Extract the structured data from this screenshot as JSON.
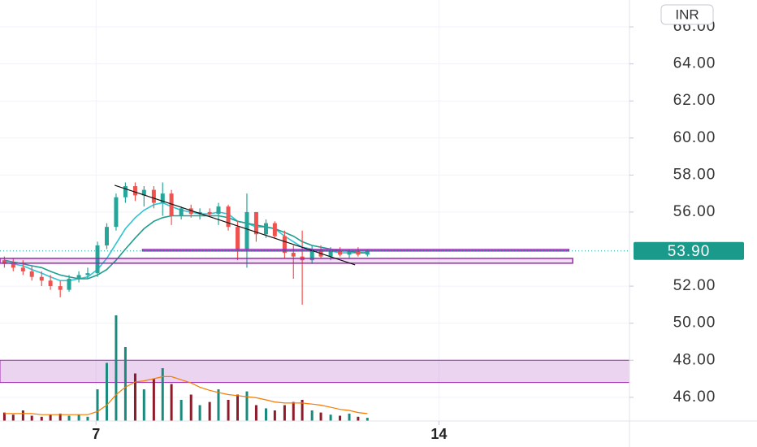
{
  "chart_data": {
    "type": "candlestick",
    "currency": "INR",
    "x": [
      5.13,
      5.31,
      5.51,
      5.69,
      5.89,
      6.07,
      6.27,
      6.45,
      6.65,
      6.83,
      7.03,
      7.22,
      7.41,
      7.6,
      7.8,
      7.98,
      8.18,
      8.36,
      8.54,
      8.74,
      8.94,
      9.12,
      9.32,
      9.5,
      9.7,
      9.89,
      10.08,
      10.27,
      10.47,
      10.65,
      10.85,
      11.03,
      11.21,
      11.41,
      11.59,
      11.79,
      11.98,
      12.17,
      12.35,
      12.54
    ],
    "open": [
      53.4,
      53.2,
      53.0,
      52.8,
      52.5,
      52.3,
      52.0,
      51.8,
      52.4,
      52.6,
      52.7,
      54.2,
      55.2,
      56.8,
      57.4,
      56.9,
      57.2,
      56.5,
      57.0,
      55.8,
      56.2,
      55.9,
      56.0,
      55.9,
      56.3,
      55.2,
      54.0,
      56.0,
      54.8,
      55.4,
      54.7,
      53.8,
      53.6,
      53.4,
      54.0,
      53.6,
      53.9,
      53.7,
      53.9,
      53.7
    ],
    "high": [
      53.6,
      53.5,
      53.4,
      53.1,
      52.8,
      52.6,
      52.3,
      52.6,
      52.8,
      53.0,
      54.4,
      55.4,
      57.0,
      57.6,
      57.6,
      57.4,
      57.4,
      57.6,
      57.2,
      56.3,
      56.4,
      56.2,
      56.2,
      56.5,
      56.4,
      55.5,
      57.0,
      56.0,
      55.6,
      55.5,
      55.0,
      54.2,
      55.0,
      54.2,
      54.2,
      54.1,
      54.1,
      54.0,
      54.1,
      54.0
    ],
    "low": [
      53.0,
      52.8,
      52.6,
      52.3,
      52.0,
      51.8,
      51.4,
      51.7,
      52.2,
      52.4,
      52.5,
      54.0,
      55.0,
      56.5,
      56.6,
      56.3,
      56.2,
      55.8,
      55.3,
      55.6,
      55.7,
      55.6,
      55.8,
      55.3,
      55.0,
      53.4,
      53.0,
      54.4,
      54.6,
      54.6,
      53.5,
      52.4,
      51.0,
      53.2,
      53.5,
      53.4,
      53.6,
      53.5,
      53.6,
      53.6
    ],
    "close": [
      53.2,
      53.0,
      52.8,
      52.5,
      52.3,
      52.0,
      51.8,
      52.4,
      52.6,
      52.7,
      54.2,
      55.2,
      56.8,
      57.4,
      56.9,
      57.2,
      56.5,
      57.0,
      55.8,
      56.2,
      55.9,
      56.0,
      55.9,
      56.3,
      55.2,
      54.0,
      56.0,
      54.8,
      55.4,
      54.7,
      53.8,
      53.6,
      53.4,
      54.0,
      53.6,
      53.9,
      53.7,
      53.9,
      53.7,
      53.9
    ],
    "volume": [
      8,
      6,
      10,
      5,
      4,
      6,
      7,
      5,
      6,
      4,
      30,
      55,
      100,
      70,
      45,
      30,
      40,
      50,
      35,
      20,
      25,
      15,
      18,
      30,
      20,
      25,
      28,
      15,
      12,
      10,
      15,
      18,
      20,
      10,
      8,
      6,
      5,
      7,
      4,
      3
    ],
    "up_color": "#26a69a",
    "down_color": "#ef5350",
    "volume_up_color": "#1b8a7e",
    "volume_down_color": "#8e1b2a",
    "ma_series": [
      {
        "color": "#2ec4d6",
        "values": [
          53.3,
          53.2,
          53.1,
          52.9,
          52.7,
          52.5,
          52.3,
          52.3,
          52.4,
          52.5,
          52.9,
          53.5,
          54.3,
          55.1,
          55.7,
          56.1,
          56.4,
          56.5,
          56.3,
          56.1,
          56.0,
          55.9,
          55.9,
          56.0,
          55.9,
          55.5,
          55.4,
          55.2,
          55.2,
          55.1,
          54.7,
          54.4,
          54.1,
          54.0,
          53.9,
          53.9,
          53.8,
          53.8,
          53.8,
          53.8
        ]
      },
      {
        "color": "#1f9e8f",
        "values": [
          53.4,
          53.3,
          53.2,
          53.1,
          53.0,
          52.8,
          52.6,
          52.5,
          52.4,
          52.4,
          52.6,
          52.9,
          53.4,
          54.0,
          54.6,
          55.1,
          55.5,
          55.7,
          55.8,
          55.8,
          55.8,
          55.8,
          55.8,
          55.8,
          55.7,
          55.5,
          55.4,
          55.3,
          55.2,
          55.1,
          54.9,
          54.7,
          54.4,
          54.2,
          54.1,
          54.0,
          53.9,
          53.9,
          53.8,
          53.8
        ]
      }
    ],
    "volume_ma": {
      "color": "#f57c00",
      "values": [
        7,
        7,
        7,
        7,
        6,
        6,
        6,
        6,
        6,
        6,
        9,
        15,
        25,
        32,
        37,
        38,
        40,
        42,
        42,
        39,
        36,
        32,
        29,
        27,
        25,
        24,
        23,
        22,
        20,
        18,
        17,
        17,
        17,
        16,
        15,
        13,
        11,
        10,
        8,
        7
      ]
    },
    "zones": [
      {
        "top": 48.0,
        "bottom": 46.8,
        "color": "#9c27b0"
      }
    ],
    "rects": [
      {
        "x": [
          5.04,
          16.73
        ],
        "top": 53.5,
        "bottom": 53.24,
        "color": "#9c27b0"
      },
      {
        "x": [
          7.95,
          16.65
        ],
        "top": 53.98,
        "bottom": 53.9,
        "color": "#9c27b0"
      }
    ],
    "trend_line": {
      "x": [
        7.38,
        12.29
      ],
      "y": [
        57.45,
        53.15
      ],
      "color": "#111111"
    },
    "last_price": {
      "value": 53.9,
      "label": "53.90",
      "color": "#1a9a8a"
    },
    "xlim": [
      5.04,
      17.89
    ],
    "ylim": [
      44.72,
      67.45
    ],
    "xticks": [
      7,
      14
    ],
    "yticks": [
      {
        "value": 46,
        "label": "46.00"
      },
      {
        "value": 48,
        "label": "48.00"
      },
      {
        "value": 50,
        "label": "50.00"
      },
      {
        "value": 52,
        "label": "52.00"
      },
      {
        "value": 56,
        "label": "56.00"
      },
      {
        "value": 58,
        "label": "58.00"
      },
      {
        "value": 60,
        "label": "60.00"
      },
      {
        "value": 62,
        "label": "62.00"
      },
      {
        "value": 64,
        "label": "64.00"
      },
      {
        "value": 66,
        "label": "66.00"
      }
    ],
    "grid": true
  }
}
